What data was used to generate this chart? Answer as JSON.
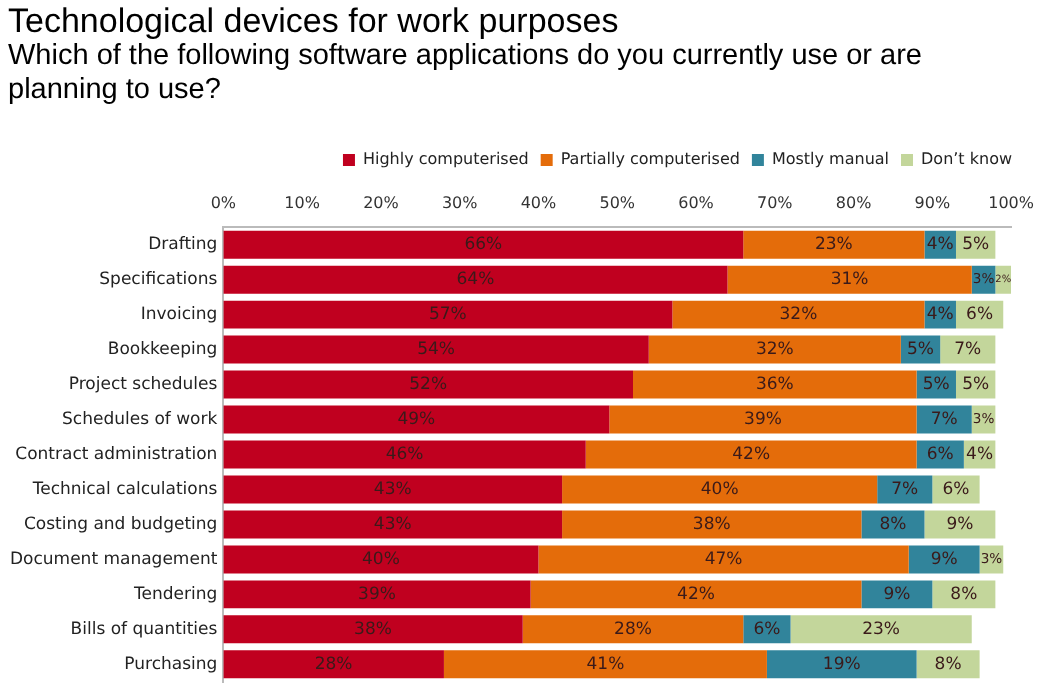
{
  "chart_data": {
    "type": "bar",
    "orientation": "horizontal",
    "stacked": true,
    "title": "Technological devices for work purposes",
    "subtitle": "Which of the following software applications do you currently use or are planning to use?",
    "categories": [
      "Drafting",
      "Specifications",
      "Invoicing",
      "Bookkeeping",
      "Project schedules",
      "Schedules of work",
      "Contract administration",
      "Technical calculations",
      "Costing and budgeting",
      "Document management",
      "Tendering",
      "Bills of quantities",
      "Purchasing"
    ],
    "series": [
      {
        "name": "Highly computerised",
        "color": "#c0001f",
        "values": [
          66,
          64,
          57,
          54,
          52,
          49,
          46,
          43,
          43,
          40,
          39,
          38,
          28
        ],
        "value_labels": [
          "66%",
          "64%",
          "57%",
          "54%",
          "52%",
          "49%",
          "46%",
          "43%",
          "43%",
          "40%",
          "39%",
          "38%",
          "28%"
        ]
      },
      {
        "name": "Partially computerised",
        "color": "#e46c0a",
        "values": [
          23,
          31,
          32,
          32,
          36,
          39,
          42,
          40,
          38,
          47,
          42,
          28,
          41
        ],
        "value_labels": [
          "23%",
          "31%",
          "32%",
          "32%",
          "36%",
          "39%",
          "42%",
          "40%",
          "38%",
          "47%",
          "42%",
          "28%",
          "41%"
        ]
      },
      {
        "name": "Mostly manual",
        "color": "#31849b",
        "values": [
          4,
          3,
          4,
          5,
          5,
          7,
          6,
          7,
          8,
          9,
          9,
          6,
          19
        ],
        "value_labels": [
          "4%",
          "3%",
          "4%",
          "5%",
          "5%",
          "7%",
          "6%",
          "7%",
          "8%",
          "9%",
          "9%",
          "6%",
          "19%"
        ]
      },
      {
        "name": "Don’t know",
        "color": "#c3d69b",
        "values": [
          5,
          2,
          6,
          7,
          5,
          3,
          4,
          6,
          9,
          3,
          8,
          23,
          8
        ],
        "value_labels": [
          "5%",
          "2%",
          "6%",
          "7%",
          "5%",
          "3%",
          "4%",
          "6%",
          "9%",
          "3%",
          "8%",
          "23%",
          "8%"
        ]
      }
    ],
    "xlim": [
      0,
      100
    ],
    "xticks": [
      {
        "value": 0,
        "label": "0%"
      },
      {
        "value": 10,
        "label": "10%"
      },
      {
        "value": 20,
        "label": "20%"
      },
      {
        "value": 30,
        "label": "30%"
      },
      {
        "value": 40,
        "label": "40%"
      },
      {
        "value": 50,
        "label": "50%"
      },
      {
        "value": 60,
        "label": "60%"
      },
      {
        "value": 70,
        "label": "70%"
      },
      {
        "value": 80,
        "label": "80%"
      },
      {
        "value": 90,
        "label": "90%"
      },
      {
        "value": 100,
        "label": "100%"
      }
    ],
    "grid": false,
    "legend": "top right"
  }
}
